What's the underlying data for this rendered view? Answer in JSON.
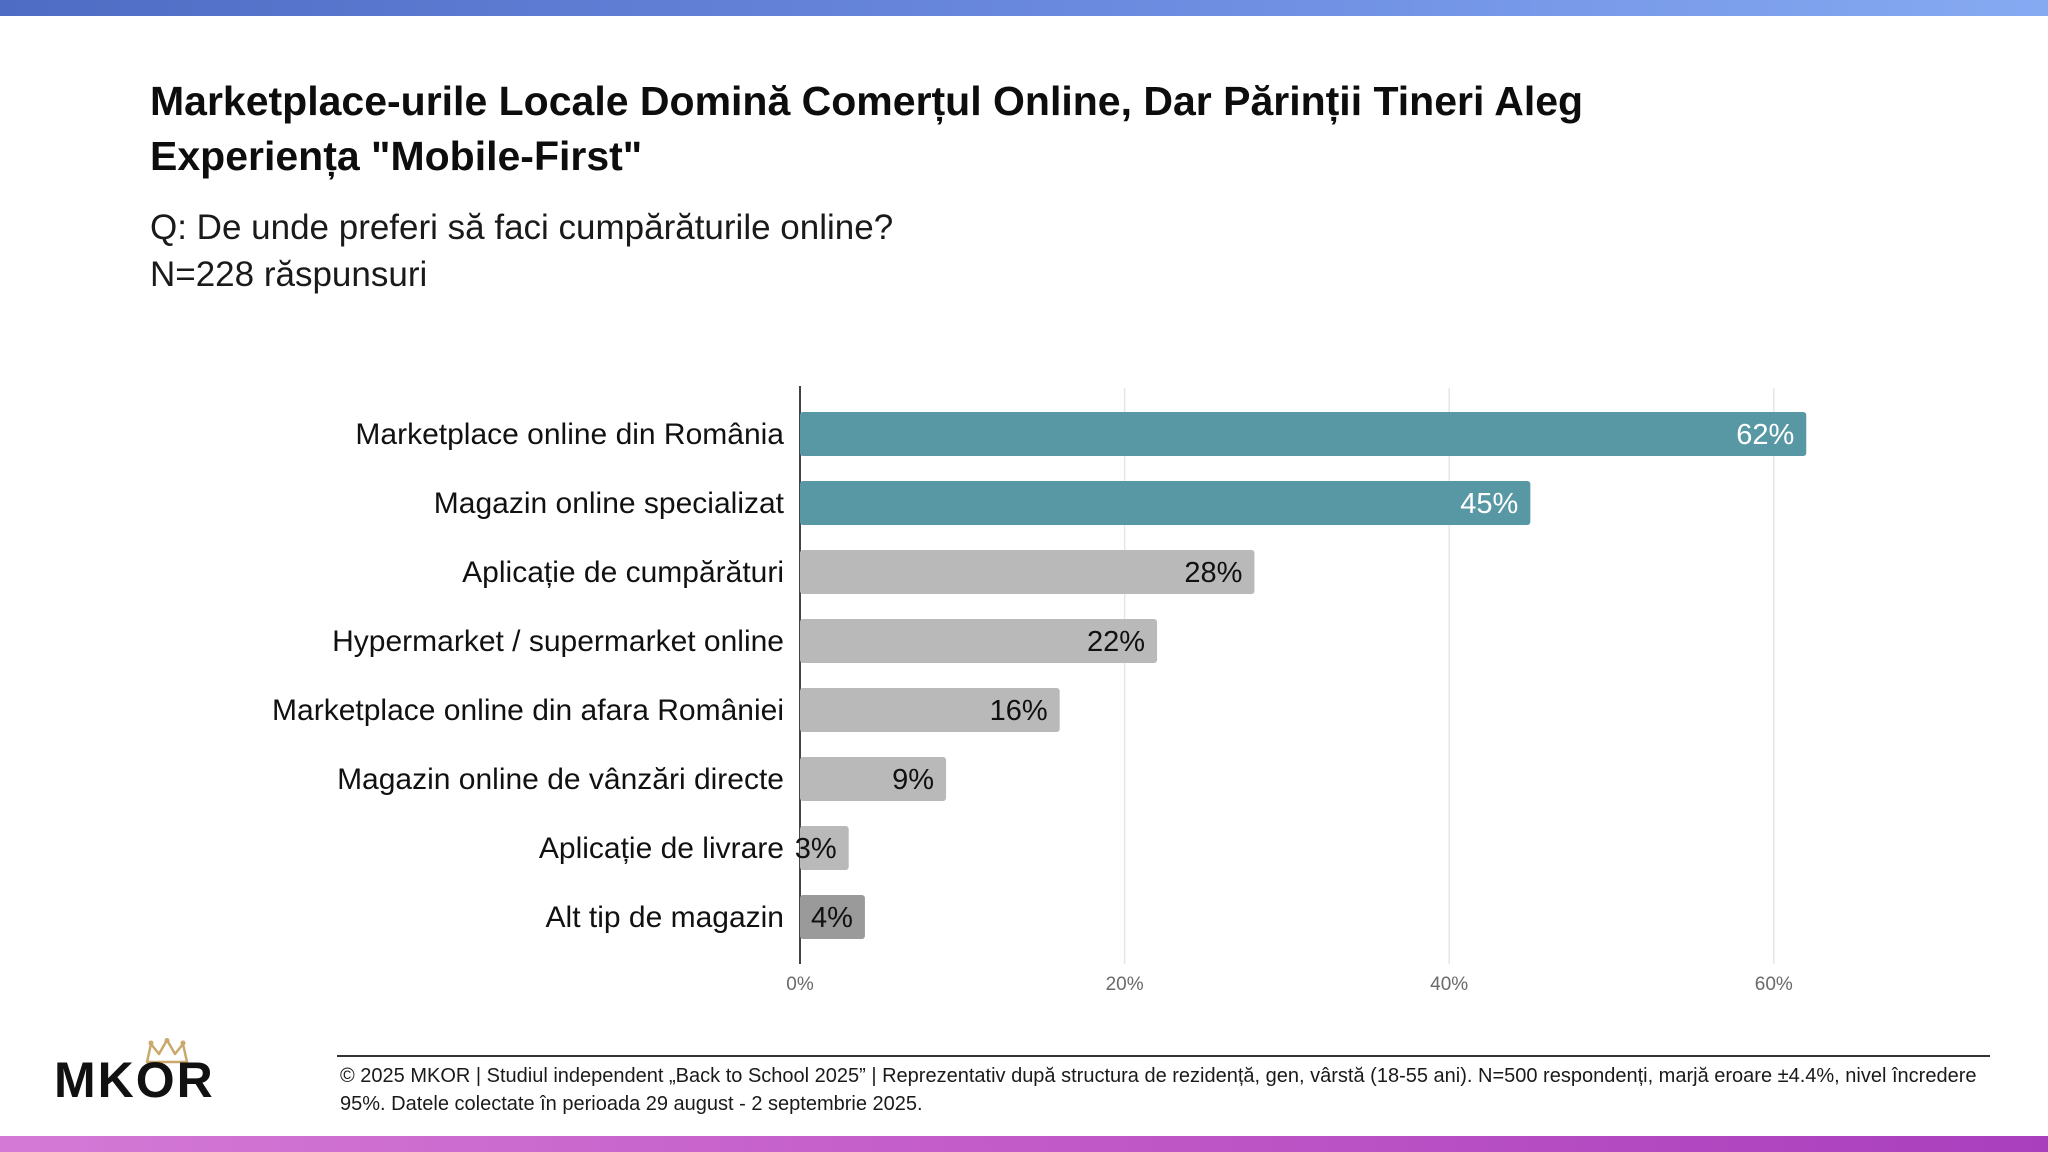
{
  "title": "Marketplace-urile Locale Domină Comerțul Online, Dar Părinții Tineri Aleg Experiența \"Mobile-First\"",
  "question": "Q: De unde preferi să faci cumpărăturile online?",
  "sample": "N=228 răspunsuri",
  "logo": {
    "text": "MKOR"
  },
  "footer": "© 2025 MKOR | Studiul independent „Back to School 2025” | Reprezentativ după structura de rezidență, gen, vârstă (18-55 ani). N=500 respondenți, marjă eroare ±4.4%, nivel încredere 95%. Datele colectate în perioada 29 august - 2 septembrie 2025.",
  "colors": {
    "highlight": "#5898a5",
    "neutral": "#b9b9b9",
    "other": "#9a9a9a",
    "highlight_label": "#ffffff",
    "neutral_label": "#111111"
  },
  "chart_data": {
    "type": "bar",
    "orientation": "horizontal",
    "title": "",
    "xlabel": "",
    "ylabel": "",
    "xlim": [
      0,
      70
    ],
    "grid": true,
    "ticks": [
      {
        "value": 0,
        "label": "0%"
      },
      {
        "value": 20,
        "label": "20%"
      },
      {
        "value": 40,
        "label": "40%"
      },
      {
        "value": 60,
        "label": "60%"
      }
    ],
    "categories": [
      "Marketplace online din România",
      "Magazin online specializat",
      "Aplicație de cumpărături",
      "Hypermarket / supermarket online",
      "Marketplace online din afara României",
      "Magazin online de vânzări directe",
      "Aplicație de livrare",
      "Alt tip de magazin"
    ],
    "values": [
      62,
      45,
      28,
      22,
      16,
      9,
      3,
      4
    ],
    "labels": [
      "62%",
      "45%",
      "28%",
      "22%",
      "16%",
      "9%",
      "3%",
      "4%"
    ],
    "styles": [
      "highlight",
      "highlight",
      "neutral",
      "neutral",
      "neutral",
      "neutral",
      "neutral",
      "other"
    ]
  }
}
